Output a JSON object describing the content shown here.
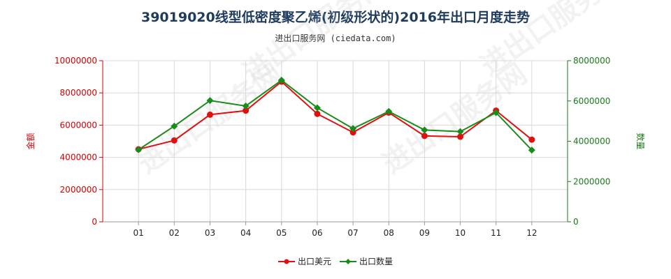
{
  "title": "39019020线型低密度聚乙烯(初级形状的)2016年出口月度走势",
  "subtitle": "进出口服务网 (ciedata.com)",
  "watermark": "进出口服务网",
  "chart_data": {
    "type": "line",
    "categories": [
      "01",
      "02",
      "03",
      "04",
      "05",
      "06",
      "07",
      "08",
      "09",
      "10",
      "11",
      "12"
    ],
    "y_left": {
      "label": "金额",
      "min": 0,
      "max": 10000000,
      "ticks": [
        0,
        2000000,
        4000000,
        6000000,
        8000000,
        10000000
      ],
      "tick_labels": [
        "0",
        "2000000",
        "4000000",
        "6000000",
        "8000000",
        "10000000"
      ]
    },
    "y_right": {
      "label": "数量",
      "min": 0,
      "max": 8000000,
      "ticks": [
        0,
        2000000,
        4000000,
        6000000,
        8000000
      ],
      "tick_labels": [
        "0",
        "2000000",
        "4000000",
        "6000000",
        "8000000"
      ]
    },
    "series": [
      {
        "name": "出口美元",
        "axis": "left",
        "color": "#e01010",
        "values": [
          4500000,
          5050000,
          6650000,
          6900000,
          8700000,
          6700000,
          5550000,
          6780000,
          5330000,
          5280000,
          6900000,
          5100000
        ]
      },
      {
        "name": "出口数量",
        "axis": "right",
        "color": "#1a8c1a",
        "values": [
          3580000,
          4750000,
          6020000,
          5750000,
          7030000,
          5660000,
          4630000,
          5480000,
          4560000,
          4480000,
          5420000,
          3560000
        ]
      }
    ],
    "grid": true,
    "legend": "bottom-center"
  }
}
